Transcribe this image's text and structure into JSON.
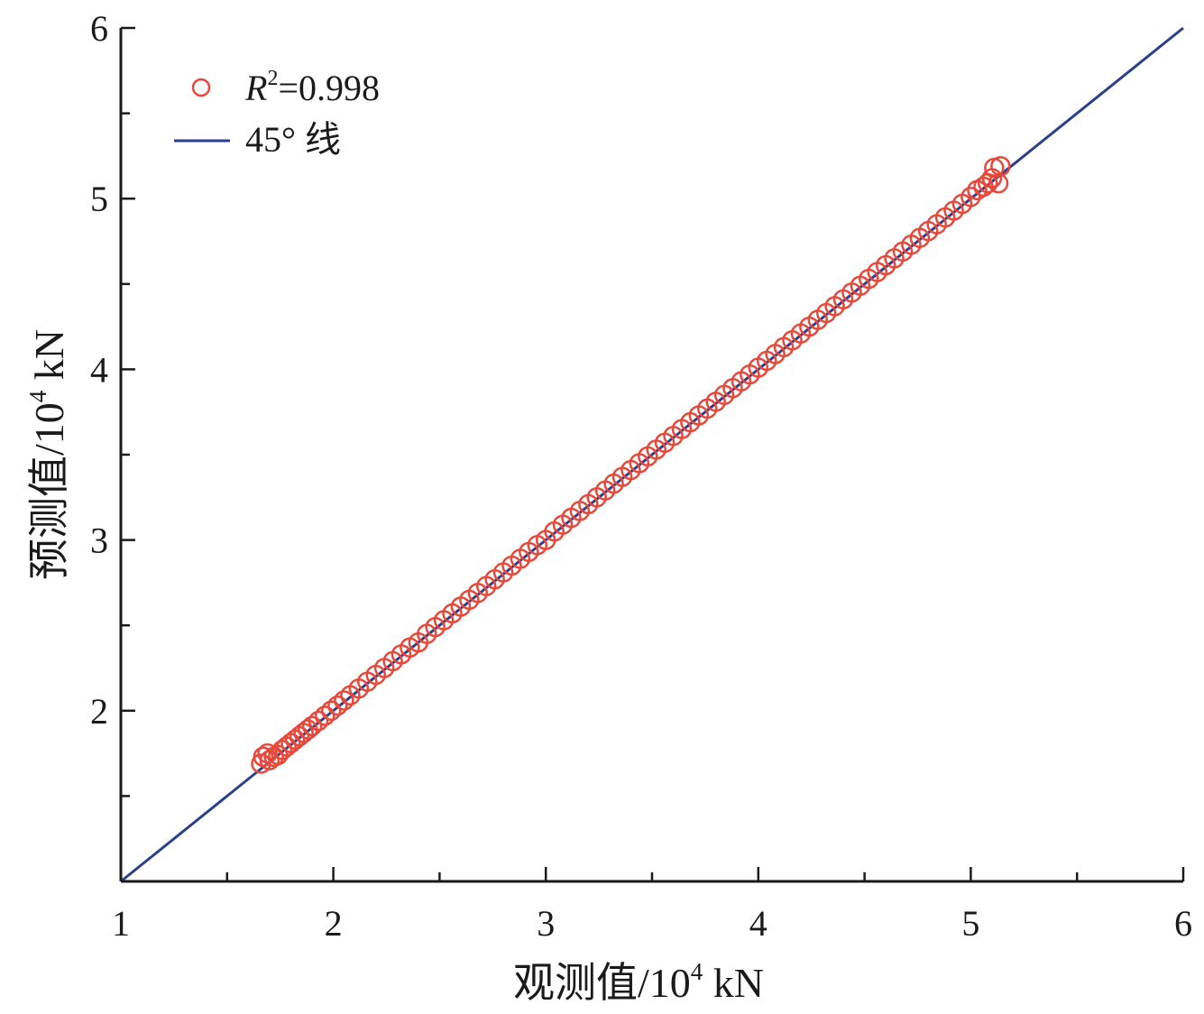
{
  "chart_data": {
    "type": "scatter",
    "xlabel_main": "观测值/10",
    "xlabel_sup": "4",
    "xlabel_unit": " kN",
    "ylabel_main": "预测值/10",
    "ylabel_sup": "4",
    "ylabel_unit": " kN",
    "xlim": [
      1,
      6
    ],
    "ylim": [
      1,
      6
    ],
    "x_ticks": [
      1,
      2,
      3,
      4,
      5,
      6
    ],
    "y_ticks": [
      2,
      3,
      4,
      5,
      6
    ],
    "minor_step": 0.5,
    "grid": false,
    "legend_position": "top-left",
    "legend": {
      "scatter_prefix": "R",
      "scatter_sup": "2",
      "scatter_rest": "=0.998",
      "line_label": "45° 线"
    },
    "colors": {
      "points": "#e8483a",
      "line": "#2b3f8c",
      "axes": "#1a1a1a"
    },
    "reference_line": {
      "from": [
        1,
        1
      ],
      "to": [
        6,
        6
      ]
    },
    "series": [
      {
        "kind": "points",
        "x": [
          1.66,
          1.67,
          1.69,
          1.7,
          1.72,
          1.74,
          1.76,
          1.78,
          1.8,
          1.82,
          1.84,
          1.86,
          1.88,
          1.9,
          1.93,
          1.96,
          1.99,
          2.02,
          2.05,
          2.08,
          2.12,
          2.16,
          2.2,
          2.24,
          2.28,
          2.32,
          2.36,
          2.4,
          2.44,
          2.48,
          2.52,
          2.56,
          2.6,
          2.64,
          2.68,
          2.72,
          2.76,
          2.8,
          2.84,
          2.88,
          2.92,
          2.96,
          3.0,
          3.04,
          3.08,
          3.12,
          3.16,
          3.2,
          3.24,
          3.28,
          3.32,
          3.36,
          3.4,
          3.44,
          3.48,
          3.52,
          3.56,
          3.6,
          3.64,
          3.68,
          3.72,
          3.76,
          3.8,
          3.84,
          3.88,
          3.92,
          3.96,
          4.0,
          4.04,
          4.08,
          4.12,
          4.16,
          4.2,
          4.24,
          4.28,
          4.32,
          4.36,
          4.4,
          4.44,
          4.48,
          4.52,
          4.56,
          4.6,
          4.64,
          4.68,
          4.72,
          4.76,
          4.8,
          4.84,
          4.88,
          4.92,
          4.96,
          5.0,
          5.03,
          5.06,
          5.08,
          5.1,
          5.11,
          5.13,
          5.14
        ],
        "y": [
          1.69,
          1.73,
          1.75,
          1.71,
          1.73,
          1.74,
          1.77,
          1.79,
          1.81,
          1.83,
          1.85,
          1.87,
          1.89,
          1.91,
          1.94,
          1.97,
          2.0,
          2.03,
          2.06,
          2.09,
          2.13,
          2.17,
          2.21,
          2.25,
          2.29,
          2.33,
          2.37,
          2.4,
          2.45,
          2.49,
          2.53,
          2.57,
          2.61,
          2.65,
          2.69,
          2.73,
          2.77,
          2.81,
          2.85,
          2.89,
          2.93,
          2.97,
          3.0,
          3.05,
          3.09,
          3.13,
          3.17,
          3.21,
          3.25,
          3.29,
          3.33,
          3.37,
          3.41,
          3.45,
          3.49,
          3.53,
          3.57,
          3.61,
          3.65,
          3.69,
          3.73,
          3.77,
          3.81,
          3.85,
          3.89,
          3.93,
          3.97,
          4.01,
          4.05,
          4.09,
          4.13,
          4.17,
          4.21,
          4.25,
          4.29,
          4.33,
          4.37,
          4.41,
          4.45,
          4.49,
          4.53,
          4.57,
          4.61,
          4.65,
          4.69,
          4.73,
          4.77,
          4.81,
          4.85,
          4.89,
          4.93,
          4.97,
          5.01,
          5.05,
          5.07,
          5.09,
          5.12,
          5.18,
          5.09,
          5.19
        ]
      }
    ]
  }
}
